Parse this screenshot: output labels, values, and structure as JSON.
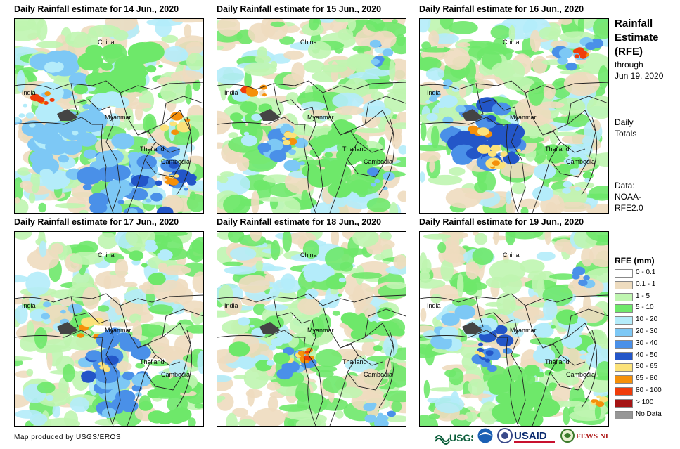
{
  "panels": [
    {
      "title": "Daily Rainfall estimate for 14 Jun., 2020",
      "day": 14
    },
    {
      "title": "Daily Rainfall estimate for 15 Jun., 2020",
      "day": 15
    },
    {
      "title": "Daily Rainfall estimate for 16 Jun., 2020",
      "day": 16
    },
    {
      "title": "Daily Rainfall estimate for 17 Jun., 2020",
      "day": 17
    },
    {
      "title": "Daily Rainfall estimate for 18 Jun., 2020",
      "day": 18
    },
    {
      "title": "Daily Rainfall estimate for 19 Jun., 2020",
      "day": 19
    }
  ],
  "places": {
    "china": "China",
    "india": "India",
    "myanmar": "Myanmar",
    "thailand": "Thailand",
    "cambodia": "Cambodia"
  },
  "side": {
    "title_line1": "Rainfall",
    "title_line2": "Estimate",
    "title_line3": "(RFE)",
    "through": "through",
    "date": "Jun 19, 2020",
    "daily": "Daily",
    "totals": "Totals",
    "data_label": "Data:",
    "data_source_1": "NOAA-",
    "data_source_2": "RFE2.0"
  },
  "legend": {
    "title": "RFE (mm)",
    "items": [
      {
        "label": "0 - 0.1",
        "color": "#ffffff"
      },
      {
        "label": "0.1 - 1",
        "color": "#eedcbf"
      },
      {
        "label": "1 - 5",
        "color": "#bff5b0"
      },
      {
        "label": "5 - 10",
        "color": "#6ee86a"
      },
      {
        "label": "10 - 20",
        "color": "#b4ecfa"
      },
      {
        "label": "20 - 30",
        "color": "#7dc8f5"
      },
      {
        "label": "30 - 40",
        "color": "#4a90e8"
      },
      {
        "label": "40 - 50",
        "color": "#2356c8"
      },
      {
        "label": "50 - 65",
        "color": "#fbe27a"
      },
      {
        "label": "65 - 80",
        "color": "#f5900a"
      },
      {
        "label": "80 - 100",
        "color": "#f03c0a"
      },
      {
        "label": "> 100",
        "color": "#a51414"
      },
      {
        "label": "No Data",
        "color": "#969696"
      }
    ]
  },
  "credit": "Map produced by USGS/EROS",
  "logos": {
    "usgs": "USGS",
    "usaid": "USAID",
    "fewsnet": "FEWS NET"
  }
}
